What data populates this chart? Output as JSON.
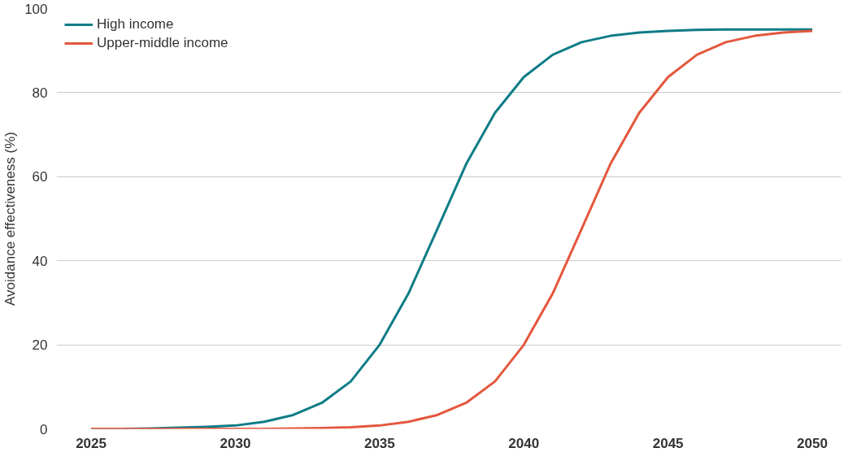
{
  "chart_data": {
    "type": "line",
    "ylabel": "Avoidance effectiveness (%)",
    "x": [
      2025,
      2026,
      2027,
      2028,
      2029,
      2030,
      2031,
      2032,
      2033,
      2034,
      2035,
      2036,
      2037,
      2038,
      2039,
      2040,
      2041,
      2042,
      2043,
      2044,
      2045,
      2046,
      2047,
      2048,
      2049,
      2050
    ],
    "series": [
      {
        "name": "High income",
        "color": "#0e7c86",
        "values": [
          0,
          0,
          0.1,
          0.3,
          0.5,
          0.8,
          1.7,
          3.3,
          6.2,
          11.3,
          20,
          32.2,
          47.5,
          63,
          75.2,
          83.7,
          89,
          92,
          93.5,
          94.3,
          94.7,
          94.9,
          95,
          95,
          95,
          95
        ]
      },
      {
        "name": "Upper-middle income",
        "color": "#e4573d",
        "values": [
          0,
          0,
          0,
          0,
          0,
          0,
          0,
          0.1,
          0.2,
          0.4,
          0.8,
          1.7,
          3.3,
          6.2,
          11.3,
          20,
          32.2,
          47.5,
          63,
          75.2,
          83.7,
          89,
          92,
          93.5,
          94.3,
          94.7
        ]
      }
    ],
    "xlim": [
      2023.8,
      2051
    ],
    "xticks": [
      2025,
      2030,
      2035,
      2040,
      2045,
      2050
    ],
    "ylim": [
      0,
      100
    ],
    "yticks": [
      0,
      20,
      40,
      60,
      80,
      100
    ],
    "grid": "y",
    "legend": "top left",
    "marker": "none",
    "line_style": "solid"
  }
}
